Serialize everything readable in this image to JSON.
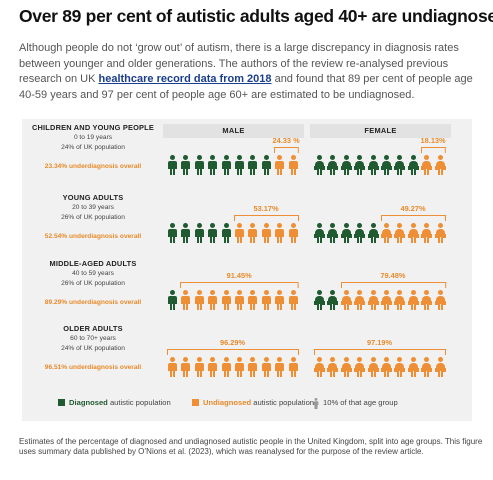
{
  "title": "Over 89 per cent of autistic adults aged 40+ are undiagnosed",
  "intro": {
    "before": "Although people do not ‘grow out’ of autism, there is a large discrepancy in diagnosis rates between younger and older generations. The authors of the review re-analysed previous research on UK ",
    "link": "healthcare record data from 2018",
    "after": " and found that 89 per cent of people age 40-59 years and 97 per cent of people age 60+ are estimated to be undiagnosed."
  },
  "columns": {
    "male": "MALE",
    "female": "FEMALE"
  },
  "colors": {
    "diagnosed": "#1f5a30",
    "undiagnosed": "#ef8f35",
    "panel": "#f1f1f1",
    "column_header": "#e2e2e2",
    "figure_icon": "#999999"
  },
  "groups": [
    {
      "name": "CHILDREN AND YOUNG PEOPLE",
      "ages": "0 to 19 years",
      "population": "24% of UK population",
      "overall": "23.34% underdiagnosis overall",
      "male": {
        "pct": "24.33 %",
        "undiagnosed": 2.433
      },
      "female": {
        "pct": "18.13%",
        "undiagnosed": 1.813
      }
    },
    {
      "name": "YOUNG ADULTS",
      "ages": "20 to 39 years",
      "population": "26% of UK population",
      "overall": "52.54% underdiagnosis overall",
      "male": {
        "pct": "53.17%",
        "undiagnosed": 5.317
      },
      "female": {
        "pct": "49.27%",
        "undiagnosed": 4.927
      }
    },
    {
      "name": "MIDDLE-AGED ADULTS",
      "ages": "40 to 59 years",
      "population": "26% of UK population",
      "overall": "89.29% underdiagnosis overall",
      "male": {
        "pct": "91.45%",
        "undiagnosed": 9.145
      },
      "female": {
        "pct": "79.48%",
        "undiagnosed": 7.948
      }
    },
    {
      "name": "OLDER ADULTS",
      "ages": "60 to 70+ years",
      "population": "24% of UK population",
      "overall": "96.51% underdiagnosis overall",
      "male": {
        "pct": "96.29%",
        "undiagnosed": 9.629
      },
      "female": {
        "pct": "97.19%",
        "undiagnosed": 9.719
      }
    }
  ],
  "legend": {
    "diagnosed_bold": "Diagnosed",
    "diagnosed_rest": " autistic population",
    "undiagnosed_bold": "Undiagnosed",
    "undiagnosed_rest": " autistic population",
    "figure_note": "10% of that age group",
    "figure_icon": "person-icon"
  },
  "caption": "Estimates of the percentage of diagnosed and undiagnosed autistic people in the United Kingdom, split into age groups. This figure uses summary data published by O’Nions et al. (2023), which was reanalysed for the purpose of the review article."
}
